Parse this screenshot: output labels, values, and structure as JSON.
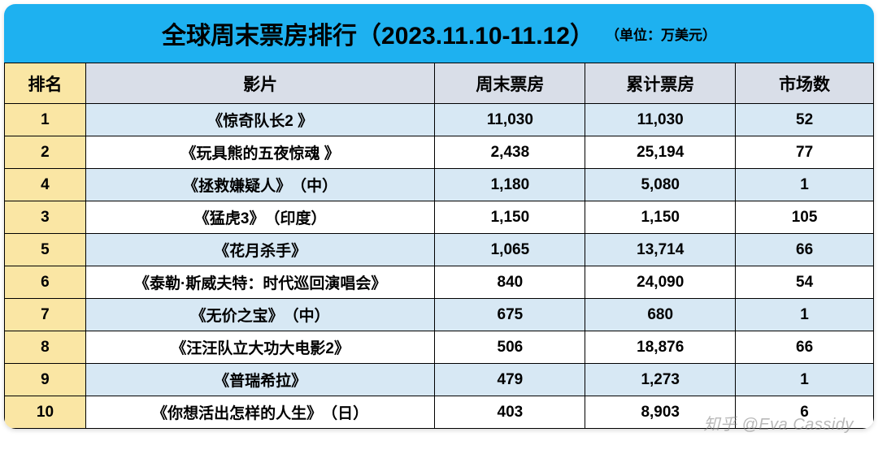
{
  "colors": {
    "title_bg": "#1eb1f0",
    "header_row_bg": "#d9dee8",
    "rank_col_bg": "#fae6a4",
    "row_alt_bg": "#d7e8f4",
    "row_bg": "#ffffff",
    "border": "#000000",
    "text": "#000000"
  },
  "title": {
    "main": "全球周末票房排行（2023.11.10-11.12）",
    "unit": "（单位：万美元）"
  },
  "headers": {
    "rank": "排名",
    "title": "影片",
    "weekend": "周末票房",
    "cume": "累计票房",
    "markets": "市场数"
  },
  "rows": [
    {
      "rank": "1",
      "title": "《惊奇队长2 》",
      "weekend": "11,030",
      "cume": "11,030",
      "markets": "52"
    },
    {
      "rank": "2",
      "title": "《玩具熊的五夜惊魂 》",
      "weekend": "2,438",
      "cume": "25,194",
      "markets": "77"
    },
    {
      "rank": "4",
      "title": "《拯救嫌疑人》　（中）",
      "weekend": "1,180",
      "cume": "5,080",
      "markets": "1"
    },
    {
      "rank": "3",
      "title": "《猛虎3》　（印度）",
      "weekend": "1,150",
      "cume": "1,150",
      "markets": "105"
    },
    {
      "rank": "5",
      "title": "《花月杀手》",
      "weekend": "1,065",
      "cume": "13,714",
      "markets": "66"
    },
    {
      "rank": "6",
      "title": "《泰勒·斯威夫特：时代巡回演唱会》",
      "weekend": "840",
      "cume": "24,090",
      "markets": "54"
    },
    {
      "rank": "7",
      "title": "《无价之宝》　（中）",
      "weekend": "675",
      "cume": "680",
      "markets": "1"
    },
    {
      "rank": "8",
      "title": "《汪汪队立大功大电影2》",
      "weekend": "506",
      "cume": "18,876",
      "markets": "66"
    },
    {
      "rank": "9",
      "title": "《普瑞希拉》",
      "weekend": "479",
      "cume": "1,273",
      "markets": "1"
    },
    {
      "rank": "10",
      "title": "《你想活出怎样的人生》　（日）",
      "weekend": "403",
      "cume": "8,903",
      "markets": "6"
    }
  ],
  "watermark": "知乎 @Eva Cassidy"
}
